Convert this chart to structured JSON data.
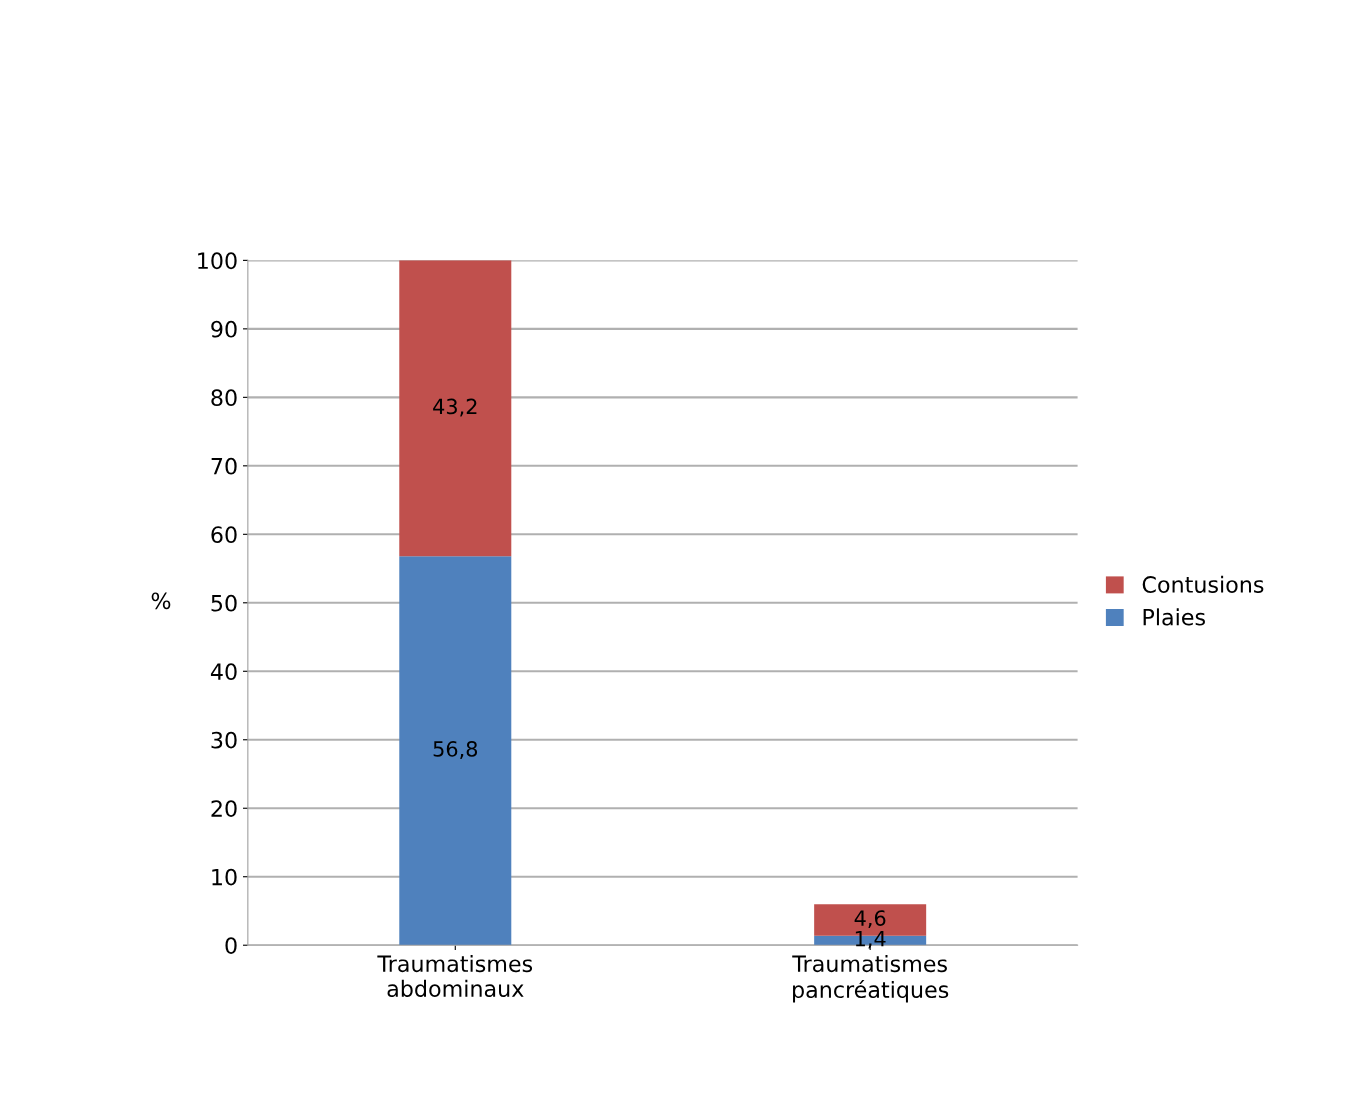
{
  "chart_data": {
    "type": "bar",
    "stacked": true,
    "ylabel": "%",
    "categories": [
      "Traumatismes\nabdominaux",
      "Traumatismes\npancréatiques"
    ],
    "series": [
      {
        "name": "Plaies",
        "color": "#4f81bd",
        "values": [
          56.8,
          1.4
        ],
        "value_labels": [
          "56,8",
          "1,4"
        ]
      },
      {
        "name": "Contusions",
        "color": "#c0504d",
        "values": [
          43.2,
          4.6
        ],
        "value_labels": [
          "43,2",
          "4,6"
        ]
      }
    ],
    "ylim": [
      0,
      100
    ],
    "yticks": [
      0,
      10,
      20,
      30,
      40,
      50,
      60,
      70,
      80,
      90,
      100
    ],
    "grid": "y",
    "legend": "right"
  }
}
